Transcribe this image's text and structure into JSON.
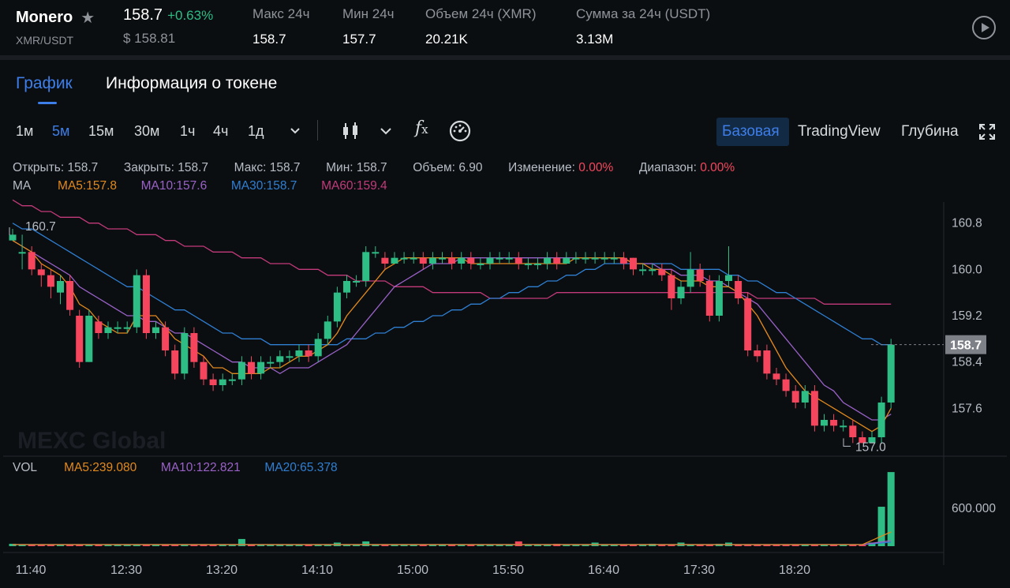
{
  "header": {
    "pair": "Monero",
    "pair_sub": "XMR/USDT",
    "price": "158.7",
    "change": "+0.63%",
    "usd_price": "$ 158.81",
    "stats": [
      {
        "label": "Макс 24ч",
        "value": "158.7"
      },
      {
        "label": "Мин 24ч",
        "value": "157.7"
      },
      {
        "label": "Объем 24ч (XMR)",
        "value": "20.21K"
      },
      {
        "label": "Сумма за 24ч (USDT)",
        "value": "3.13M"
      }
    ]
  },
  "tabs": [
    {
      "label": "График",
      "active": true
    },
    {
      "label": "Информация о токене",
      "active": false
    }
  ],
  "toolbar": {
    "timeframes": [
      "1м",
      "5м",
      "15м",
      "30м",
      "1ч",
      "4ч",
      "1д"
    ],
    "active_timeframe": "5м",
    "views": [
      "Базовая",
      "TradingView",
      "Глубина"
    ],
    "active_view": "Базовая",
    "icons": [
      "chevron-down-icon",
      "candlestick-icon",
      "chevron-down-icon",
      "fx-icon",
      "gauge-icon",
      "fullscreen-icon"
    ]
  },
  "ohlc": {
    "open_label": "Открыть:",
    "open": "158.7",
    "close_label": "Закрыть:",
    "close": "158.7",
    "high_label": "Макс:",
    "high": "158.7",
    "low_label": "Мин:",
    "low": "158.7",
    "volume_label": "Объем:",
    "volume": "6.90",
    "change_label": "Изменение:",
    "change": "0.00%",
    "range_label": "Диапазон:",
    "range": "0.00%"
  },
  "ma_legend": {
    "title": "MA",
    "items": [
      {
        "label": "MA5:157.8",
        "color": "#e2891c"
      },
      {
        "label": "MA10:157.6",
        "color": "#9a62c8"
      },
      {
        "label": "MA30:158.7",
        "color": "#2f7fd3"
      },
      {
        "label": "MA60:159.4",
        "color": "#c23a7a"
      }
    ]
  },
  "vol_legend": {
    "title": "VOL",
    "items": [
      {
        "label": "MA5:239.080",
        "color": "#e2891c"
      },
      {
        "label": "MA10:122.821",
        "color": "#9a62c8"
      },
      {
        "label": "MA20:65.378",
        "color": "#2f7fd3"
      }
    ]
  },
  "watermark": "MEXC Global",
  "colors": {
    "up": "#2ebd85",
    "down": "#f6465d",
    "accent": "#3d7ee9",
    "current_price_bg": "#7d8087"
  },
  "chart_data": {
    "type": "candlestick",
    "x_ticks": [
      "11:40",
      "12:30",
      "13:20",
      "14:10",
      "15:00",
      "15:50",
      "16:40",
      "17:30",
      "18:20"
    ],
    "y_ticks": [
      "160.8",
      "160.0",
      "159.2",
      "158.4",
      "157.6"
    ],
    "ylim": [
      156.8,
      161.3
    ],
    "current_price": "158.7",
    "high_marker": "160.7",
    "low_marker": "157.0",
    "vol_y_tick": "600.000",
    "candles": [
      [
        160.5,
        160.6,
        160.7,
        160.5
      ],
      [
        160.3,
        160.3,
        160.6,
        160.0
      ],
      [
        160.3,
        160.0,
        160.4,
        159.9
      ],
      [
        160.0,
        159.9,
        160.1,
        159.7
      ],
      [
        159.9,
        159.7,
        160.0,
        159.5
      ],
      [
        159.6,
        159.8,
        159.9,
        159.4
      ],
      [
        159.8,
        159.3,
        159.9,
        159.2
      ],
      [
        159.2,
        158.4,
        159.3,
        158.3
      ],
      [
        158.4,
        159.2,
        159.3,
        158.4
      ],
      [
        159.1,
        158.9,
        159.2,
        158.8
      ],
      [
        158.9,
        159.0,
        159.1,
        158.8
      ],
      [
        159.0,
        159.0,
        159.1,
        158.9
      ],
      [
        159.0,
        159.0,
        159.1,
        158.9
      ],
      [
        159.0,
        159.9,
        160.0,
        158.9
      ],
      [
        159.9,
        158.9,
        160.0,
        158.8
      ],
      [
        158.9,
        159.0,
        159.1,
        158.8
      ],
      [
        159.0,
        158.6,
        159.1,
        158.5
      ],
      [
        158.6,
        158.2,
        158.7,
        158.1
      ],
      [
        158.2,
        158.9,
        159.0,
        158.1
      ],
      [
        158.9,
        158.4,
        159.0,
        158.3
      ],
      [
        158.4,
        158.1,
        158.5,
        158.0
      ],
      [
        158.1,
        158.0,
        158.2,
        157.9
      ],
      [
        158.0,
        158.1,
        158.2,
        157.9
      ],
      [
        158.1,
        158.1,
        158.2,
        158.0
      ],
      [
        158.1,
        158.4,
        158.5,
        158.0
      ],
      [
        158.4,
        158.2,
        158.5,
        158.1
      ],
      [
        158.2,
        158.4,
        158.5,
        158.1
      ],
      [
        158.4,
        158.4,
        158.5,
        158.3
      ],
      [
        158.4,
        158.5,
        158.6,
        158.3
      ],
      [
        158.5,
        158.5,
        158.6,
        158.4
      ],
      [
        158.5,
        158.6,
        158.7,
        158.4
      ],
      [
        158.6,
        158.5,
        158.7,
        158.4
      ],
      [
        158.5,
        158.8,
        158.9,
        158.4
      ],
      [
        158.8,
        159.1,
        159.2,
        158.7
      ],
      [
        159.1,
        159.6,
        159.7,
        159.0
      ],
      [
        159.6,
        159.8,
        159.9,
        159.5
      ],
      [
        159.8,
        159.8,
        159.9,
        159.7
      ],
      [
        159.8,
        160.3,
        160.4,
        159.7
      ],
      [
        160.3,
        160.3,
        160.4,
        160.2
      ],
      [
        160.2,
        160.1,
        160.3,
        160.0
      ],
      [
        160.1,
        160.2,
        160.3,
        160.1
      ],
      [
        160.2,
        160.2,
        160.3,
        160.1
      ],
      [
        160.2,
        160.2,
        160.3,
        160.1
      ],
      [
        160.2,
        160.1,
        160.3,
        160.0
      ],
      [
        160.1,
        160.2,
        160.3,
        160.0
      ],
      [
        160.2,
        160.2,
        160.3,
        160.1
      ],
      [
        160.2,
        160.1,
        160.3,
        160.0
      ],
      [
        160.1,
        160.2,
        160.3,
        160.0
      ],
      [
        160.2,
        160.1,
        160.3,
        160.0
      ],
      [
        160.1,
        160.1,
        160.2,
        160.0
      ],
      [
        160.1,
        160.2,
        160.3,
        160.0
      ],
      [
        160.2,
        160.2,
        160.3,
        160.1
      ],
      [
        160.2,
        160.2,
        160.3,
        160.1
      ],
      [
        160.2,
        160.1,
        160.3,
        160.0
      ],
      [
        160.1,
        160.1,
        160.2,
        160.0
      ],
      [
        160.1,
        160.1,
        160.2,
        160.0
      ],
      [
        160.1,
        160.2,
        160.3,
        160.0
      ],
      [
        160.2,
        160.1,
        160.3,
        160.0
      ],
      [
        160.1,
        160.2,
        160.3,
        160.1
      ],
      [
        160.2,
        160.2,
        160.3,
        160.1
      ],
      [
        160.2,
        160.2,
        160.3,
        160.1
      ],
      [
        160.2,
        160.2,
        160.3,
        160.1
      ],
      [
        160.2,
        160.2,
        160.3,
        160.1
      ],
      [
        160.2,
        160.2,
        160.3,
        160.1
      ],
      [
        160.2,
        160.1,
        160.3,
        160.0
      ],
      [
        160.2,
        160.0,
        160.2,
        159.9
      ],
      [
        160.0,
        160.0,
        160.1,
        159.9
      ],
      [
        160.0,
        160.0,
        160.1,
        159.9
      ],
      [
        160.0,
        159.9,
        160.1,
        159.8
      ],
      [
        159.9,
        159.5,
        160.0,
        159.3
      ],
      [
        159.5,
        159.7,
        159.8,
        159.4
      ],
      [
        159.7,
        160.0,
        160.3,
        159.6
      ],
      [
        160.0,
        159.8,
        160.1,
        159.7
      ],
      [
        159.8,
        159.2,
        159.9,
        159.1
      ],
      [
        159.2,
        159.8,
        159.9,
        159.1
      ],
      [
        159.8,
        159.9,
        160.4,
        159.7
      ],
      [
        159.8,
        159.5,
        159.9,
        159.4
      ],
      [
        159.5,
        158.6,
        159.6,
        158.5
      ],
      [
        158.6,
        158.5,
        158.7,
        158.4
      ],
      [
        158.6,
        158.2,
        158.7,
        158.1
      ],
      [
        158.2,
        158.1,
        158.3,
        158.0
      ],
      [
        158.1,
        157.9,
        158.2,
        157.8
      ],
      [
        157.9,
        157.7,
        158.0,
        157.6
      ],
      [
        157.7,
        157.9,
        158.0,
        157.6
      ],
      [
        157.9,
        157.3,
        158.0,
        157.2
      ],
      [
        157.3,
        157.4,
        157.5,
        157.2
      ],
      [
        157.4,
        157.3,
        157.5,
        157.2
      ],
      [
        157.3,
        157.3,
        157.4,
        157.2
      ],
      [
        157.3,
        157.1,
        157.4,
        157.0
      ],
      [
        157.1,
        157.0,
        157.2,
        157.0
      ],
      [
        157.0,
        157.1,
        157.2,
        157.0
      ],
      [
        157.1,
        157.7,
        157.8,
        157.0
      ],
      [
        157.7,
        158.7,
        158.8,
        157.6
      ]
    ],
    "ma5": [
      160.5,
      160.4,
      160.3,
      160.1,
      160.0,
      159.9,
      159.7,
      159.4,
      159.3,
      159.1,
      159.0,
      158.9,
      158.9,
      159.2,
      159.2,
      159.2,
      159.0,
      158.8,
      158.7,
      158.6,
      158.5,
      158.3,
      158.3,
      158.2,
      158.2,
      158.2,
      158.2,
      158.3,
      158.3,
      158.4,
      158.5,
      158.5,
      158.6,
      158.7,
      158.9,
      159.2,
      159.4,
      159.6,
      159.8,
      160.0,
      160.1,
      160.2,
      160.2,
      160.2,
      160.2,
      160.2,
      160.2,
      160.2,
      160.1,
      160.1,
      160.1,
      160.1,
      160.1,
      160.1,
      160.1,
      160.1,
      160.1,
      160.1,
      160.1,
      160.2,
      160.2,
      160.2,
      160.2,
      160.2,
      160.2,
      160.1,
      160.1,
      160.0,
      160.0,
      159.9,
      159.8,
      159.8,
      159.8,
      159.7,
      159.7,
      159.7,
      159.6,
      159.4,
      159.2,
      158.9,
      158.6,
      158.3,
      158.1,
      157.9,
      157.8,
      157.7,
      157.6,
      157.5,
      157.4,
      157.3,
      157.2,
      157.3,
      157.6
    ],
    "ma10": [
      160.5,
      160.4,
      160.3,
      160.2,
      160.1,
      160.0,
      159.9,
      159.7,
      159.6,
      159.5,
      159.4,
      159.3,
      159.2,
      159.2,
      159.1,
      159.1,
      159.0,
      158.9,
      158.9,
      158.8,
      158.7,
      158.6,
      158.5,
      158.4,
      158.4,
      158.3,
      158.3,
      158.3,
      158.2,
      158.3,
      158.3,
      158.3,
      158.4,
      158.5,
      158.6,
      158.7,
      158.9,
      159.1,
      159.3,
      159.5,
      159.7,
      159.8,
      159.9,
      160.0,
      160.1,
      160.1,
      160.1,
      160.2,
      160.2,
      160.2,
      160.2,
      160.2,
      160.2,
      160.2,
      160.2,
      160.2,
      160.2,
      160.2,
      160.2,
      160.2,
      160.2,
      160.2,
      160.2,
      160.2,
      160.2,
      160.1,
      160.1,
      160.1,
      160.0,
      160.0,
      159.9,
      159.9,
      159.9,
      159.8,
      159.8,
      159.7,
      159.6,
      159.5,
      159.4,
      159.2,
      159.0,
      158.8,
      158.6,
      158.4,
      158.2,
      158.0,
      157.9,
      157.7,
      157.6,
      157.5,
      157.4,
      157.4,
      157.5
    ],
    "ma30": [
      160.8,
      160.7,
      160.7,
      160.6,
      160.5,
      160.4,
      160.3,
      160.2,
      160.1,
      160.0,
      159.9,
      159.8,
      159.7,
      159.7,
      159.6,
      159.5,
      159.4,
      159.3,
      159.3,
      159.2,
      159.1,
      159.0,
      158.9,
      158.9,
      158.8,
      158.8,
      158.8,
      158.7,
      158.7,
      158.7,
      158.7,
      158.7,
      158.7,
      158.7,
      158.7,
      158.8,
      158.8,
      158.8,
      158.9,
      158.9,
      159.0,
      159.0,
      159.1,
      159.1,
      159.2,
      159.2,
      159.3,
      159.3,
      159.4,
      159.4,
      159.5,
      159.5,
      159.6,
      159.6,
      159.7,
      159.7,
      159.8,
      159.8,
      159.9,
      159.9,
      160.0,
      160.0,
      160.1,
      160.1,
      160.1,
      160.1,
      160.1,
      160.1,
      160.1,
      160.1,
      160.0,
      160.0,
      160.0,
      160.0,
      160.0,
      159.9,
      159.9,
      159.8,
      159.8,
      159.7,
      159.6,
      159.6,
      159.5,
      159.4,
      159.3,
      159.2,
      159.1,
      159.0,
      158.9,
      158.8,
      158.8,
      158.7,
      158.7
    ],
    "ma60": [
      161.2,
      161.1,
      161.1,
      161.0,
      161.0,
      160.9,
      160.9,
      160.9,
      160.8,
      160.8,
      160.7,
      160.7,
      160.7,
      160.6,
      160.6,
      160.6,
      160.5,
      160.5,
      160.4,
      160.4,
      160.4,
      160.3,
      160.3,
      160.3,
      160.2,
      160.2,
      160.2,
      160.1,
      160.1,
      160.1,
      160.0,
      160.0,
      160.0,
      159.9,
      159.9,
      159.9,
      159.8,
      159.8,
      159.8,
      159.8,
      159.7,
      159.7,
      159.7,
      159.7,
      159.6,
      159.6,
      159.6,
      159.6,
      159.6,
      159.6,
      159.5,
      159.5,
      159.5,
      159.5,
      159.5,
      159.5,
      159.5,
      159.6,
      159.6,
      159.6,
      159.6,
      159.6,
      159.6,
      159.6,
      159.6,
      159.6,
      159.6,
      159.6,
      159.6,
      159.6,
      159.6,
      159.6,
      159.6,
      159.6,
      159.6,
      159.6,
      159.6,
      159.6,
      159.5,
      159.5,
      159.5,
      159.5,
      159.5,
      159.5,
      159.5,
      159.4,
      159.4,
      159.4,
      159.4,
      159.4,
      159.4,
      159.4,
      159.4
    ],
    "volume": [
      20,
      15,
      12,
      10,
      8,
      8,
      10,
      12,
      10,
      8,
      6,
      6,
      8,
      10,
      6,
      6,
      8,
      10,
      8,
      6,
      8,
      6,
      6,
      8,
      60,
      6,
      8,
      6,
      10,
      8,
      6,
      6,
      8,
      10,
      30,
      8,
      10,
      40,
      8,
      6,
      8,
      6,
      6,
      8,
      6,
      8,
      6,
      8,
      6,
      8,
      6,
      8,
      6,
      40,
      10,
      8,
      6,
      20,
      8,
      6,
      10,
      30,
      8,
      6,
      10,
      8,
      6,
      20,
      10,
      12,
      30,
      10,
      8,
      8,
      20,
      30,
      10,
      8,
      6,
      6,
      10,
      8,
      6,
      6,
      10,
      8,
      6,
      8,
      10,
      8,
      30,
      330,
      620
    ]
  }
}
